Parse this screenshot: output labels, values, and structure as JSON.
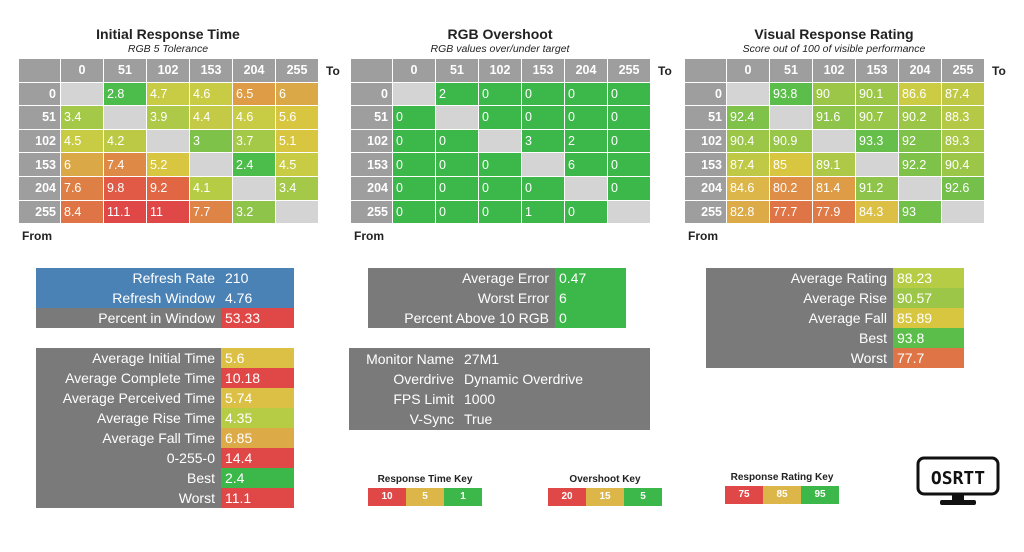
{
  "matrix_headers": [
    "0",
    "51",
    "102",
    "153",
    "204",
    "255"
  ],
  "to_label": "To",
  "from_label": "From",
  "colors": {
    "gray_header": "#9e9e9e",
    "diag": "#d4d4d4",
    "panel_gray": "#7a7a7a",
    "blue": "#4a82b5",
    "green": "#3cb84a",
    "ltgreen": "#7ec24a",
    "ygreen": "#b6cc45",
    "yellow": "#d8c640",
    "gold": "#dcb648",
    "orange": "#de8e46",
    "redorange": "#e06a40",
    "red": "#e04848"
  },
  "matrices": [
    {
      "title": "Initial Response Time",
      "subtitle": "RGB 5 Tolerance",
      "rows": [
        [
          null,
          "2.8",
          "4.7",
          "4.6",
          "6.5",
          "6"
        ],
        [
          "3.4",
          null,
          "3.9",
          "4.4",
          "4.6",
          "5.6"
        ],
        [
          "4.5",
          "4.2",
          null,
          "3",
          "3.7",
          "5.1"
        ],
        [
          "6",
          "7.4",
          "5.2",
          null,
          "2.4",
          "4.5"
        ],
        [
          "7.6",
          "9.8",
          "9.2",
          "4.1",
          null,
          "3.4"
        ],
        [
          "8.4",
          "11.1",
          "11",
          "7.7",
          "3.2",
          null
        ]
      ],
      "cell_colors": [
        [
          null,
          "#4cbc4a",
          "#c8cb44",
          "#c8cb44",
          "#dd9c45",
          "#dba847"
        ],
        [
          "#a4c848",
          null,
          "#aec947",
          "#c4ca45",
          "#c8cb44",
          "#d8c640"
        ],
        [
          "#c8cb44",
          "#bcc945",
          null,
          "#7ec24a",
          "#a4c848",
          "#d8c640"
        ],
        [
          "#dba847",
          "#de8a46",
          "#d8c640",
          null,
          "#4cbc4a",
          "#c8cb44"
        ],
        [
          "#de8046",
          "#e05a45",
          "#e06644",
          "#b6cc45",
          null,
          "#a4c848"
        ],
        [
          "#df7546",
          "#e04848",
          "#e04848",
          "#de8446",
          "#8ec449",
          null
        ]
      ]
    },
    {
      "title": "RGB Overshoot",
      "subtitle": "RGB values over/under target",
      "rows": [
        [
          null,
          "2",
          "0",
          "0",
          "0",
          "0"
        ],
        [
          "0",
          null,
          "0",
          "0",
          "0",
          "0"
        ],
        [
          "0",
          "0",
          null,
          "3",
          "2",
          "0"
        ],
        [
          "0",
          "0",
          "0",
          null,
          "6",
          "0"
        ],
        [
          "0",
          "0",
          "0",
          "0",
          null,
          "0"
        ],
        [
          "0",
          "0",
          "0",
          "1",
          "0",
          null
        ]
      ],
      "cell_colors": [
        [
          null,
          "#3cb84a",
          "#3cb84a",
          "#3cb84a",
          "#3cb84a",
          "#3cb84a"
        ],
        [
          "#3cb84a",
          null,
          "#3cb84a",
          "#3cb84a",
          "#3cb84a",
          "#3cb84a"
        ],
        [
          "#3cb84a",
          "#3cb84a",
          null,
          "#3cb84a",
          "#3cb84a",
          "#3cb84a"
        ],
        [
          "#3cb84a",
          "#3cb84a",
          "#3cb84a",
          null,
          "#3cb84a",
          "#3cb84a"
        ],
        [
          "#3cb84a",
          "#3cb84a",
          "#3cb84a",
          "#3cb84a",
          null,
          "#3cb84a"
        ],
        [
          "#3cb84a",
          "#3cb84a",
          "#3cb84a",
          "#3cb84a",
          "#3cb84a",
          null
        ]
      ]
    },
    {
      "title": "Visual Response Rating",
      "subtitle": "Score out of 100 of visible performance",
      "rows": [
        [
          null,
          "93.8",
          "90",
          "90.1",
          "86.6",
          "87.4"
        ],
        [
          "92.4",
          null,
          "91.6",
          "90.7",
          "90.2",
          "88.3"
        ],
        [
          "90.4",
          "90.9",
          null,
          "93.3",
          "92",
          "89.3"
        ],
        [
          "87.4",
          "85",
          "89.1",
          null,
          "92.2",
          "90.4"
        ],
        [
          "84.6",
          "80.2",
          "81.4",
          "91.2",
          null,
          "92.6"
        ],
        [
          "82.8",
          "77.7",
          "77.9",
          "84.3",
          "93",
          null
        ]
      ],
      "cell_colors": [
        [
          null,
          "#5cbe4a",
          "#9cc648",
          "#9cc648",
          "#cccb44",
          "#c0c945"
        ],
        [
          "#7ec24a",
          null,
          "#8ec449",
          "#98c648",
          "#9cc648",
          "#b6c946"
        ],
        [
          "#9cc648",
          "#98c648",
          null,
          "#66bf4a",
          "#7ec24a",
          "#a8c847"
        ],
        [
          "#c0c945",
          "#d8c640",
          "#aec947",
          null,
          "#7ec24a",
          "#9cc648"
        ],
        [
          "#dcb648",
          "#de8e46",
          "#dd9c45",
          "#8ec449",
          null,
          "#74c04a"
        ],
        [
          "#dcaa47",
          "#df7546",
          "#df7a46",
          "#dcc045",
          "#70c04a",
          null
        ]
      ]
    }
  ],
  "refresh_panel": [
    {
      "label": "Refresh Rate",
      "value": "210",
      "label_color": "#4a82b5",
      "value_color": "#4a82b5"
    },
    {
      "label": "Refresh Window",
      "value": "4.76",
      "label_color": "#4a82b5",
      "value_color": "#4a82b5"
    },
    {
      "label": "Percent in Window",
      "value": "53.33",
      "label_color": "#7a7a7a",
      "value_color": "#e04848"
    }
  ],
  "overshoot_panel": [
    {
      "label": "Average Error",
      "value": "0.47",
      "value_color": "#3cb84a"
    },
    {
      "label": "Worst Error",
      "value": "6",
      "value_color": "#3cb84a"
    },
    {
      "label": "Percent Above 10 RGB",
      "value": "0",
      "value_color": "#3cb84a"
    }
  ],
  "rating_panel": [
    {
      "label": "Average Rating",
      "value": "88.23",
      "value_color": "#b6cc45"
    },
    {
      "label": "Average Rise",
      "value": "90.57",
      "value_color": "#9cc648"
    },
    {
      "label": "Average Fall",
      "value": "85.89",
      "value_color": "#d8c640"
    },
    {
      "label": "Best",
      "value": "93.8",
      "value_color": "#5cbe4a"
    },
    {
      "label": "Worst",
      "value": "77.7",
      "value_color": "#df7546"
    }
  ],
  "times_panel": [
    {
      "label": "Average Initial Time",
      "value": "5.6",
      "value_color": "#dcc045"
    },
    {
      "label": "Average Complete Time",
      "value": "10.18",
      "value_color": "#e04848"
    },
    {
      "label": "Average Perceived Time",
      "value": "5.74",
      "value_color": "#dcc045"
    },
    {
      "label": "Average Rise Time",
      "value": "4.35",
      "value_color": "#b6cc45"
    },
    {
      "label": "Average Fall Time",
      "value": "6.85",
      "value_color": "#dcaa47"
    },
    {
      "label": "0-255-0",
      "value": "14.4",
      "value_color": "#e04848"
    },
    {
      "label": "Best",
      "value": "2.4",
      "value_color": "#3cb84a"
    },
    {
      "label": "Worst",
      "value": "11.1",
      "value_color": "#e04848"
    }
  ],
  "monitor_panel": [
    {
      "label": "Monitor Name",
      "value": "27M1"
    },
    {
      "label": "Overdrive",
      "value": "Dynamic Overdrive"
    },
    {
      "label": "FPS Limit",
      "value": "1000"
    },
    {
      "label": "V-Sync",
      "value": "True"
    }
  ],
  "keys": [
    {
      "title": "Response Time Key",
      "cells": [
        {
          "text": "10",
          "color": "#e04848"
        },
        {
          "text": "5",
          "color": "#dcb648"
        },
        {
          "text": "1",
          "color": "#3cb84a"
        }
      ]
    },
    {
      "title": "Overshoot Key",
      "cells": [
        {
          "text": "20",
          "color": "#e04848"
        },
        {
          "text": "15",
          "color": "#dcb648"
        },
        {
          "text": "5",
          "color": "#3cb84a"
        }
      ]
    },
    {
      "title": "Response Rating Key",
      "cells": [
        {
          "text": "75",
          "color": "#e04848"
        },
        {
          "text": "85",
          "color": "#dcb648"
        },
        {
          "text": "95",
          "color": "#3cb84a"
        }
      ]
    }
  ],
  "logo": {
    "text": "OSRTT",
    "icon": "monitor-icon"
  }
}
